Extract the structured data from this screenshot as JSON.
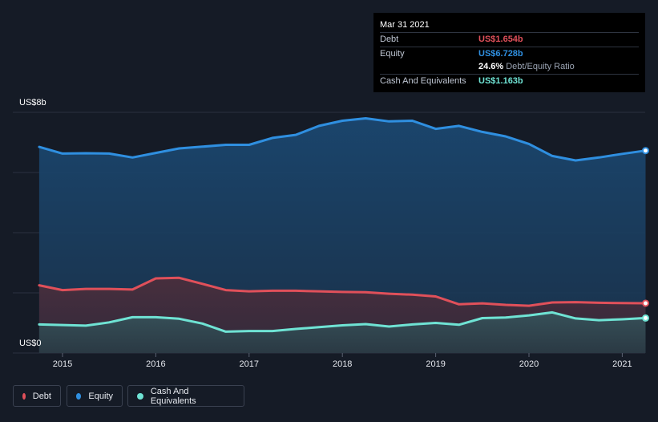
{
  "chart_data": {
    "type": "area",
    "x_axis": {
      "ticks": [
        "2015",
        "2016",
        "2017",
        "2018",
        "2019",
        "2020",
        "2021"
      ]
    },
    "y_axis": {
      "min_label": "US$0",
      "max_label": "US$8b",
      "ylim": [
        0,
        8
      ],
      "unit": "US$ billions"
    },
    "grid": true,
    "series": [
      {
        "name": "Equity",
        "color": "#2f8fe0",
        "x": [
          2014.75,
          2015.0,
          2015.25,
          2015.5,
          2015.75,
          2016.0,
          2016.25,
          2016.5,
          2016.75,
          2017.0,
          2017.25,
          2017.5,
          2017.75,
          2018.0,
          2018.25,
          2018.5,
          2018.75,
          2019.0,
          2019.25,
          2019.5,
          2019.75,
          2020.0,
          2020.25,
          2020.5,
          2020.75,
          2021.0,
          2021.25
        ],
        "values": [
          6.85,
          6.63,
          6.64,
          6.63,
          6.5,
          6.65,
          6.8,
          6.86,
          6.92,
          6.92,
          7.15,
          7.25,
          7.55,
          7.72,
          7.8,
          7.7,
          7.72,
          7.45,
          7.55,
          7.35,
          7.2,
          6.95,
          6.55,
          6.4,
          6.5,
          6.62,
          6.728
        ]
      },
      {
        "name": "Debt",
        "color": "#e0505a",
        "x": [
          2014.75,
          2015.0,
          2015.25,
          2015.5,
          2015.75,
          2016.0,
          2016.25,
          2016.5,
          2016.75,
          2017.0,
          2017.25,
          2017.5,
          2017.75,
          2018.0,
          2018.25,
          2018.5,
          2018.75,
          2019.0,
          2019.25,
          2019.5,
          2019.75,
          2020.0,
          2020.25,
          2020.5,
          2020.75,
          2021.0,
          2021.25
        ],
        "values": [
          2.25,
          2.09,
          2.13,
          2.13,
          2.11,
          2.48,
          2.5,
          2.3,
          2.09,
          2.05,
          2.07,
          2.07,
          2.05,
          2.03,
          2.02,
          1.97,
          1.94,
          1.88,
          1.62,
          1.65,
          1.6,
          1.57,
          1.68,
          1.69,
          1.67,
          1.66,
          1.654
        ]
      },
      {
        "name": "Cash And Equivalents",
        "color": "#6fe3d4",
        "x": [
          2014.75,
          2015.0,
          2015.25,
          2015.5,
          2015.75,
          2016.0,
          2016.25,
          2016.5,
          2016.75,
          2017.0,
          2017.25,
          2017.5,
          2017.75,
          2018.0,
          2018.25,
          2018.5,
          2018.75,
          2019.0,
          2019.25,
          2019.5,
          2019.75,
          2020.0,
          2020.25,
          2020.5,
          2020.75,
          2021.0,
          2021.25
        ],
        "values": [
          0.95,
          0.93,
          0.91,
          1.02,
          1.19,
          1.19,
          1.14,
          0.98,
          0.71,
          0.73,
          0.73,
          0.8,
          0.86,
          0.92,
          0.96,
          0.88,
          0.95,
          1.0,
          0.94,
          1.16,
          1.18,
          1.25,
          1.35,
          1.15,
          1.09,
          1.12,
          1.163
        ]
      }
    ]
  },
  "tooltip": {
    "date": "Mar 31 2021",
    "debt_label": "Debt",
    "debt_value": "US$1.654b",
    "equity_label": "Equity",
    "equity_value": "US$6.728b",
    "ratio_value": "24.6%",
    "ratio_label": "Debt/Equity Ratio",
    "cash_label": "Cash And Equivalents",
    "cash_value": "US$1.163b"
  },
  "legend": {
    "debt": "Debt",
    "equity": "Equity",
    "cash": "Cash And Equivalents"
  },
  "colors": {
    "background": "#151b26",
    "debt": "#e0505a",
    "equity": "#2f8fe0",
    "cash": "#6fe3d4"
  }
}
